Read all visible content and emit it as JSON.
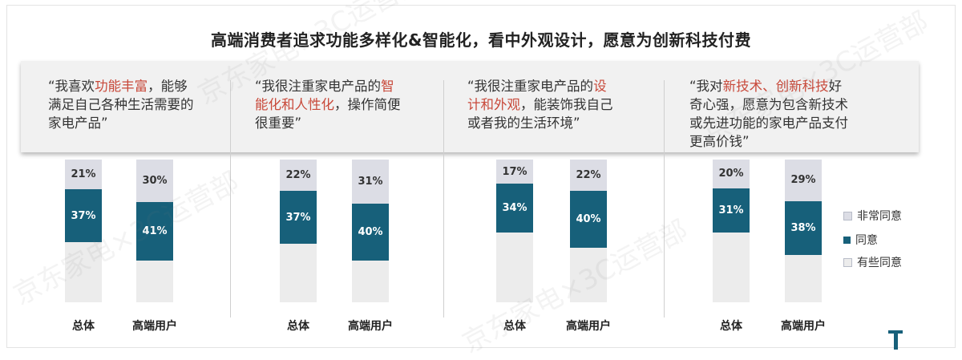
{
  "title": "高端消费者追求功能多样化&智能化，看中外观设计，愿意为创新科技付费",
  "quotes": [
    {
      "lines": [
        [
          {
            "t": "“我喜欢",
            "hl": false
          },
          {
            "t": "功能丰富",
            "hl": true
          },
          {
            "t": "，能够",
            "hl": false
          }
        ],
        [
          {
            "t": "满足自己各种生活需要的",
            "hl": false
          }
        ],
        [
          {
            "t": "家电产品”",
            "hl": false
          }
        ]
      ]
    },
    {
      "lines": [
        [
          {
            "t": "“我很注重家电产品的",
            "hl": false
          },
          {
            "t": "智",
            "hl": true
          }
        ],
        [
          {
            "t": "能化和人性化",
            "hl": true
          },
          {
            "t": "，操作简便",
            "hl": false
          }
        ],
        [
          {
            "t": "很重要”",
            "hl": false
          }
        ]
      ]
    },
    {
      "lines": [
        [
          {
            "t": "“我很注重家电产品的",
            "hl": false
          },
          {
            "t": "设",
            "hl": true
          }
        ],
        [
          {
            "t": "计和外观",
            "hl": true
          },
          {
            "t": "，能装饰我自己",
            "hl": false
          }
        ],
        [
          {
            "t": "或者我的生活环境”",
            "hl": false
          }
        ]
      ]
    },
    {
      "lines": [
        [
          {
            "t": "“我对",
            "hl": false
          },
          {
            "t": "新技术、创新科技",
            "hl": true
          },
          {
            "t": "好",
            "hl": false
          }
        ],
        [
          {
            "t": "奇心强，愿意为包含新技术",
            "hl": false
          }
        ],
        [
          {
            "t": "或先进功能的家电产品支付",
            "hl": false
          }
        ],
        [
          {
            "t": "更高价钱”",
            "hl": false
          }
        ]
      ]
    }
  ],
  "chart_data": {
    "type": "bar",
    "stacked": true,
    "panels": [
      {
        "categories": [
          "总体",
          "高端用户"
        ],
        "series": [
          {
            "name": "有些同意",
            "values": [
              null,
              null
            ]
          },
          {
            "name": "同意",
            "values": [
              37,
              41
            ]
          },
          {
            "name": "非常同意",
            "values": [
              21,
              30
            ]
          }
        ]
      },
      {
        "categories": [
          "总体",
          "高端用户"
        ],
        "series": [
          {
            "name": "有些同意",
            "values": [
              null,
              null
            ]
          },
          {
            "name": "同意",
            "values": [
              37,
              40
            ]
          },
          {
            "name": "非常同意",
            "values": [
              22,
              31
            ]
          }
        ]
      },
      {
        "categories": [
          "总体",
          "高端用户"
        ],
        "series": [
          {
            "name": "有些同意",
            "values": [
              null,
              null
            ]
          },
          {
            "name": "同意",
            "values": [
              34,
              40
            ]
          },
          {
            "name": "非常同意",
            "values": [
              17,
              22
            ]
          }
        ]
      },
      {
        "categories": [
          "总体",
          "高端用户"
        ],
        "series": [
          {
            "name": "有些同意",
            "values": [
              null,
              null
            ]
          },
          {
            "name": "同意",
            "values": [
              31,
              38
            ]
          },
          {
            "name": "非常同意",
            "values": [
              20,
              29
            ]
          }
        ]
      }
    ],
    "legend": [
      {
        "name": "非常同意",
        "color": "#dcdde5"
      },
      {
        "name": "同意",
        "color": "#17607a"
      },
      {
        "name": "有些同意",
        "color": "#ececec"
      }
    ],
    "legend_position": "right"
  },
  "watermark": "京东家电×3C运营部",
  "colors": {
    "agree": "#17607a",
    "strongly": "#dcdde5",
    "somewhat": "#ececec",
    "highlight": "#c8493a"
  }
}
